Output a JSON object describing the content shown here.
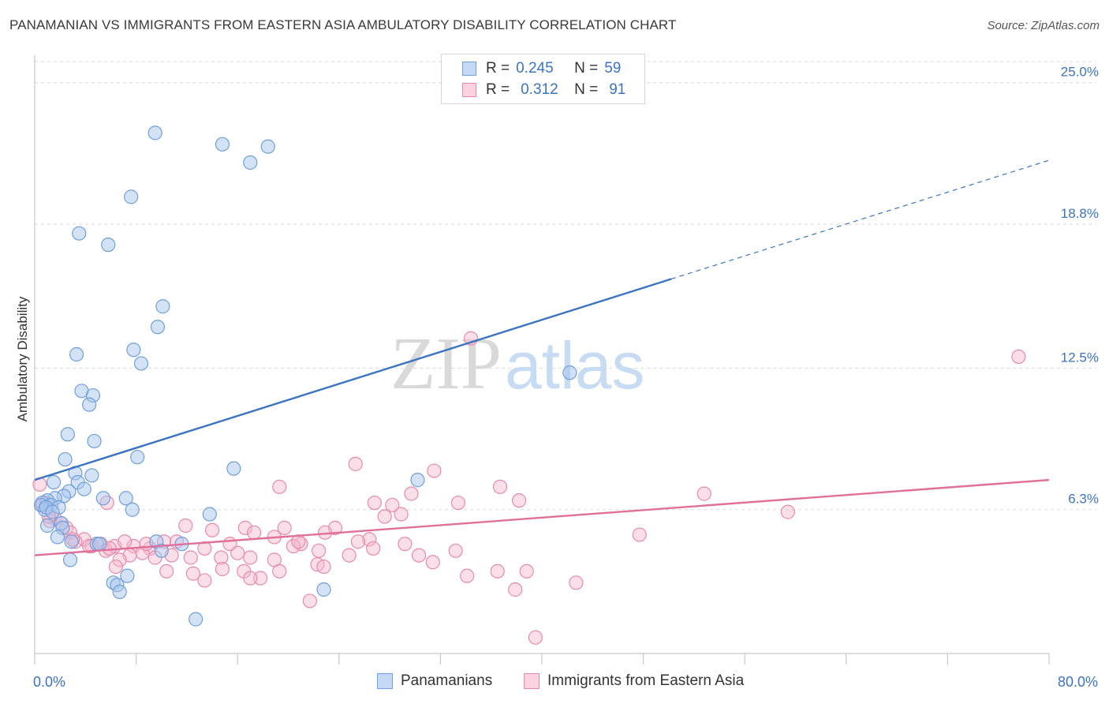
{
  "header": {
    "title": "PANAMANIAN VS IMMIGRANTS FROM EASTERN ASIA AMBULATORY DISABILITY CORRELATION CHART",
    "source": "Source: ZipAtlas.com"
  },
  "legend": {
    "rows": [
      {
        "r_label": "R =",
        "r_value": "0.245",
        "n_label": "N =",
        "n_value": "59"
      },
      {
        "r_label": "R =",
        "r_value": "0.312",
        "n_label": "N =",
        "n_value": "91"
      }
    ]
  },
  "watermark": {
    "part1": "ZIP",
    "part2": "atlas"
  },
  "colors": {
    "blue_fill": "#a9c6ee",
    "blue_stroke": "#6f9fdc",
    "blue_line": "#3b73c4",
    "pink_fill": "#f6b8cb",
    "pink_stroke": "#e98aa8",
    "pink_line": "#e0709a",
    "axis_label": "#3b73c4",
    "grid": "#d9d9d9"
  },
  "chart_data": {
    "type": "scatter",
    "title": "PANAMANIAN VS IMMIGRANTS FROM EASTERN ASIA AMBULATORY DISABILITY CORRELATION CHART",
    "xlabel": "",
    "ylabel": "Ambulatory Disability",
    "xlim": [
      0,
      80
    ],
    "ylim": [
      0,
      26.2
    ],
    "x_tick_labels": [
      "0.0%",
      "80.0%"
    ],
    "y_ticks": [
      {
        "value": 6.3,
        "label": "6.3%"
      },
      {
        "value": 12.5,
        "label": "12.5%"
      },
      {
        "value": 18.8,
        "label": "18.8%"
      },
      {
        "value": 25.0,
        "label": "25.0%"
      }
    ],
    "grid": "horizontal-dashed",
    "legend_position": "top-center",
    "series": [
      {
        "name": "Panamanians",
        "color": "#6f9fdc",
        "trend": {
          "x0": 0,
          "y0": 7.6,
          "x1": 50.2,
          "y1": 16.4,
          "dashed_to_x": 80,
          "dashed_to_y": 21.6
        },
        "points": [
          [
            9.5,
            22.8
          ],
          [
            14.8,
            22.3
          ],
          [
            18.4,
            22.2
          ],
          [
            17.0,
            21.5
          ],
          [
            7.6,
            20.0
          ],
          [
            3.5,
            18.4
          ],
          [
            5.8,
            17.9
          ],
          [
            10.1,
            15.2
          ],
          [
            9.7,
            14.3
          ],
          [
            3.3,
            13.1
          ],
          [
            7.8,
            13.3
          ],
          [
            8.4,
            12.7
          ],
          [
            42.2,
            12.3
          ],
          [
            3.7,
            11.5
          ],
          [
            4.6,
            11.3
          ],
          [
            4.3,
            10.9
          ],
          [
            2.6,
            9.6
          ],
          [
            4.7,
            9.3
          ],
          [
            8.1,
            8.6
          ],
          [
            2.4,
            8.5
          ],
          [
            15.7,
            8.1
          ],
          [
            3.2,
            7.9
          ],
          [
            4.5,
            7.8
          ],
          [
            30.2,
            7.6
          ],
          [
            1.5,
            7.5
          ],
          [
            3.4,
            7.5
          ],
          [
            2.7,
            7.1
          ],
          [
            3.9,
            7.2
          ],
          [
            5.4,
            6.8
          ],
          [
            7.2,
            6.8
          ],
          [
            2.3,
            6.9
          ],
          [
            1.6,
            6.8
          ],
          [
            1.0,
            6.7
          ],
          [
            0.6,
            6.6
          ],
          [
            1.3,
            6.5
          ],
          [
            0.8,
            6.3
          ],
          [
            1.9,
            6.4
          ],
          [
            0.5,
            6.5
          ],
          [
            0.9,
            6.4
          ],
          [
            7.7,
            6.3
          ],
          [
            1.4,
            6.2
          ],
          [
            13.8,
            6.1
          ],
          [
            2.1,
            5.7
          ],
          [
            1.0,
            5.6
          ],
          [
            2.2,
            5.5
          ],
          [
            1.8,
            5.1
          ],
          [
            2.9,
            4.9
          ],
          [
            4.9,
            4.8
          ],
          [
            9.6,
            4.9
          ],
          [
            11.6,
            4.8
          ],
          [
            10.0,
            4.5
          ],
          [
            2.8,
            4.1
          ],
          [
            7.3,
            3.4
          ],
          [
            6.2,
            3.1
          ],
          [
            6.5,
            3.0
          ],
          [
            6.7,
            2.7
          ],
          [
            22.8,
            2.8
          ],
          [
            12.7,
            1.5
          ],
          [
            5.1,
            4.8
          ]
        ]
      },
      {
        "name": "Immigrants from Eastern Asia",
        "color": "#e98aa8",
        "trend": {
          "x0": 0,
          "y0": 4.3,
          "x1": 80,
          "y1": 7.6
        },
        "points": [
          [
            34.4,
            13.8
          ],
          [
            77.6,
            13.0
          ],
          [
            25.3,
            8.3
          ],
          [
            31.5,
            8.0
          ],
          [
            36.7,
            7.3
          ],
          [
            19.3,
            7.3
          ],
          [
            52.8,
            7.0
          ],
          [
            29.7,
            7.0
          ],
          [
            26.8,
            6.6
          ],
          [
            33.4,
            6.6
          ],
          [
            38.2,
            6.7
          ],
          [
            28.2,
            6.5
          ],
          [
            59.4,
            6.2
          ],
          [
            28.9,
            6.1
          ],
          [
            27.6,
            6.0
          ],
          [
            5.7,
            6.6
          ],
          [
            1.6,
            5.9
          ],
          [
            2.1,
            5.7
          ],
          [
            1.2,
            5.8
          ],
          [
            2.5,
            5.5
          ],
          [
            2.8,
            5.3
          ],
          [
            11.9,
            5.6
          ],
          [
            19.7,
            5.5
          ],
          [
            23.7,
            5.5
          ],
          [
            16.6,
            5.5
          ],
          [
            22.9,
            5.3
          ],
          [
            17.3,
            5.3
          ],
          [
            14.0,
            5.4
          ],
          [
            47.7,
            5.2
          ],
          [
            18.9,
            5.1
          ],
          [
            26.4,
            5.0
          ],
          [
            29.2,
            4.8
          ],
          [
            21.0,
            4.8
          ],
          [
            15.4,
            4.8
          ],
          [
            10.2,
            4.9
          ],
          [
            11.2,
            4.9
          ],
          [
            5.2,
            4.8
          ],
          [
            6.3,
            4.7
          ],
          [
            3.9,
            5.0
          ],
          [
            4.5,
            4.7
          ],
          [
            3.2,
            4.9
          ],
          [
            7.8,
            4.7
          ],
          [
            9.1,
            4.6
          ],
          [
            13.4,
            4.6
          ],
          [
            16.0,
            4.4
          ],
          [
            20.4,
            4.7
          ],
          [
            22.4,
            4.5
          ],
          [
            26.7,
            4.6
          ],
          [
            33.2,
            4.5
          ],
          [
            30.3,
            4.3
          ],
          [
            24.8,
            4.3
          ],
          [
            17.0,
            4.2
          ],
          [
            14.7,
            4.2
          ],
          [
            12.3,
            4.2
          ],
          [
            10.8,
            4.3
          ],
          [
            8.5,
            4.4
          ],
          [
            7.5,
            4.3
          ],
          [
            6.7,
            4.1
          ],
          [
            5.6,
            4.5
          ],
          [
            9.5,
            4.2
          ],
          [
            31.4,
            4.0
          ],
          [
            18.9,
            4.1
          ],
          [
            22.3,
            3.9
          ],
          [
            22.8,
            3.8
          ],
          [
            19.3,
            3.6
          ],
          [
            16.5,
            3.6
          ],
          [
            14.8,
            3.7
          ],
          [
            12.5,
            3.5
          ],
          [
            10.4,
            3.6
          ],
          [
            6.4,
            3.8
          ],
          [
            17.8,
            3.3
          ],
          [
            17.0,
            3.3
          ],
          [
            13.4,
            3.2
          ],
          [
            34.1,
            3.4
          ],
          [
            38.8,
            3.6
          ],
          [
            42.7,
            3.1
          ],
          [
            36.5,
            3.6
          ],
          [
            21.7,
            2.3
          ],
          [
            37.9,
            2.8
          ],
          [
            39.5,
            0.7
          ],
          [
            0.4,
            7.4
          ],
          [
            0.6,
            6.5
          ],
          [
            1.1,
            6.0
          ],
          [
            0.9,
            6.6
          ],
          [
            3.0,
            5.0
          ],
          [
            4.3,
            4.7
          ],
          [
            5.9,
            4.6
          ],
          [
            7.1,
            4.9
          ],
          [
            8.8,
            4.8
          ],
          [
            20.8,
            4.9
          ],
          [
            25.5,
            4.9
          ]
        ]
      }
    ]
  },
  "bottom_legend": {
    "items": [
      {
        "label": "Panamanians"
      },
      {
        "label": "Immigrants from Eastern Asia"
      }
    ]
  }
}
